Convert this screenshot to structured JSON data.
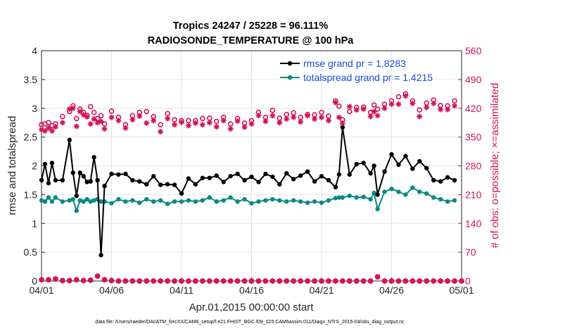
{
  "chart_data": {
    "type": "line",
    "title": "Tropics 24247 / 25228 = 96.111%",
    "subtitle": "RADIOSONDE_TEMPERATURE @ 100 hPa",
    "xlabel": "Apr.01,2015 00:00:00 start",
    "ylabel": "rmse and totalspread",
    "ylabel_right": "# of obs: o=possible; ×=assimilated",
    "xlim": [
      0,
      30
    ],
    "ylim": [
      0,
      4
    ],
    "ylim_right": [
      0,
      560
    ],
    "x_tick_values": [
      0,
      5,
      10,
      15,
      20,
      25,
      30
    ],
    "x_tick_labels": [
      "04/01",
      "04/06",
      "04/11",
      "04/16",
      "04/21",
      "04/26",
      "05/01"
    ],
    "y_ticks": [
      "0",
      "0.5",
      "1",
      "1.5",
      "2",
      "2.5",
      "3",
      "3.5",
      "4"
    ],
    "y_ticks_right": [
      "0",
      "70",
      "140",
      "210",
      "280",
      "350",
      "420",
      "490",
      "560"
    ],
    "grid": true,
    "legend_position": "top-right",
    "x": [
      0.0,
      0.25,
      0.5,
      0.75,
      1,
      1.5,
      2,
      2.25,
      2.5,
      2.75,
      3,
      3.25,
      3.5,
      3.75,
      4,
      4.25,
      4.5,
      5,
      5.5,
      6,
      6.5,
      7,
      7.5,
      8,
      8.5,
      9,
      9.5,
      10,
      10.5,
      11,
      11.5,
      12,
      12.5,
      13,
      13.5,
      14,
      14.5,
      15,
      15.5,
      16,
      16.5,
      17,
      17.5,
      18,
      18.5,
      19,
      19.5,
      20,
      20.5,
      21,
      21.25,
      21.5,
      22,
      22.5,
      23,
      23.5,
      23.75,
      24,
      24.5,
      25,
      25.5,
      26,
      26.5,
      27,
      27.5,
      28,
      28.5,
      29,
      29.5
    ],
    "series": [
      {
        "name": "rmse",
        "legend_label": "rmse grand pr = 1.8283",
        "color": "#000000",
        "values": [
          1.75,
          2.03,
          1.7,
          2.05,
          1.75,
          1.75,
          2.45,
          1.88,
          1.48,
          1.88,
          1.82,
          1.72,
          1.73,
          2.15,
          1.75,
          0.45,
          1.65,
          1.86,
          1.85,
          1.86,
          1.75,
          1.73,
          1.68,
          1.82,
          1.67,
          1.68,
          1.67,
          1.52,
          1.78,
          1.68,
          1.79,
          1.79,
          1.83,
          1.72,
          1.82,
          1.86,
          1.75,
          1.81,
          1.72,
          1.86,
          1.81,
          1.68,
          1.87,
          1.77,
          1.83,
          1.9,
          1.73,
          1.82,
          1.75,
          1.63,
          1.85,
          2.67,
          1.85,
          2.03,
          2.05,
          1.87,
          2.0,
          1.5,
          1.9,
          2.2,
          2.02,
          2.17,
          1.95,
          2.08,
          1.96,
          1.75,
          1.73,
          1.8,
          1.75
        ]
      },
      {
        "name": "totalspread",
        "legend_label": "totalspread grand pr = 1.4215",
        "color": "#0a8a82",
        "values": [
          1.4,
          1.38,
          1.45,
          1.38,
          1.45,
          1.38,
          1.4,
          1.42,
          1.22,
          1.4,
          1.38,
          1.42,
          1.38,
          1.4,
          1.42,
          1.38,
          1.38,
          1.35,
          1.42,
          1.38,
          1.4,
          1.36,
          1.42,
          1.38,
          1.4,
          1.34,
          1.38,
          1.38,
          1.4,
          1.38,
          1.4,
          1.45,
          1.38,
          1.4,
          1.45,
          1.38,
          1.42,
          1.35,
          1.38,
          1.4,
          1.42,
          1.4,
          1.38,
          1.4,
          1.38,
          1.36,
          1.38,
          1.36,
          1.4,
          1.44,
          1.45,
          1.45,
          1.48,
          1.45,
          1.46,
          1.42,
          1.53,
          1.25,
          1.55,
          1.6,
          1.55,
          1.5,
          1.62,
          1.55,
          1.52,
          1.45,
          1.42,
          1.38,
          1.4
        ]
      },
      {
        "name": "obs possible",
        "marker": "o",
        "color": "#d1145a",
        "axis": "right",
        "values": [
          380,
          382,
          385,
          378,
          382,
          400,
          412,
          426,
          395,
          418,
          410,
          403,
          424,
          410,
          395,
          402,
          382,
          413,
          398,
          380,
          402,
          410,
          412,
          400,
          380,
          407,
          392,
          390,
          390,
          390,
          395,
          396,
          388,
          398,
          382,
          395,
          384,
          390,
          410,
          398,
          415,
          396,
          405,
          409,
          398,
          405,
          404,
          410,
          401,
          438,
          425,
          392,
          412,
          422,
          423,
          410,
          428,
          418,
          430,
          438,
          448,
          455,
          438,
          416,
          433,
          440,
          427,
          426,
          438
        ]
      },
      {
        "name": "obs assimilated",
        "marker": "x",
        "color": "#d1145a",
        "axis": "right",
        "values": [
          368,
          365,
          372,
          365,
          375,
          385,
          418,
          420,
          376,
          412,
          404,
          399,
          382,
          394,
          385,
          388,
          370,
          398,
          390,
          372,
          392,
          401,
          384,
          390,
          363,
          395,
          380,
          386,
          378,
          384,
          380,
          385,
          375,
          390,
          370,
          389,
          374,
          382,
          402,
          388,
          402,
          385,
          394,
          398,
          387,
          402,
          394,
          398,
          390,
          434,
          398,
          384,
          424,
          416,
          418,
          400,
          412,
          402,
          420,
          430,
          430,
          450,
          432,
          400,
          422,
          432,
          417,
          417,
          426
        ]
      }
    ],
    "obs_near_zero": {
      "x": [
        0,
        0.5,
        1,
        1.5,
        2,
        2.5,
        3,
        3.5,
        4,
        4.5,
        5,
        5.5,
        6,
        6.5,
        7,
        7.5,
        8,
        8.5,
        9,
        9.5,
        10,
        10.5,
        11,
        11.5,
        12,
        12.5,
        13,
        13.5,
        14,
        14.5,
        15,
        15.5,
        16,
        16.5,
        17,
        17.5,
        18,
        18.5,
        19,
        19.5,
        20,
        20.5,
        21,
        21.5,
        22,
        22.5,
        23,
        23.5,
        24,
        24.5,
        25,
        25.5,
        26,
        26.5,
        27,
        27.5,
        28,
        28.5,
        29,
        29.5,
        30
      ],
      "values": [
        3,
        3,
        5,
        1,
        1,
        3,
        1,
        2,
        12,
        3,
        1,
        0,
        0,
        0,
        0,
        0,
        0,
        0,
        0,
        0,
        0,
        0,
        0,
        0,
        0,
        0,
        0,
        0,
        0,
        0,
        0,
        0,
        0,
        0,
        0,
        0,
        0,
        0,
        0,
        0,
        0,
        0,
        0,
        0,
        0,
        0,
        0,
        0,
        10,
        0,
        0,
        0,
        0,
        0,
        0,
        0,
        0,
        0,
        0,
        0,
        0
      ]
    }
  },
  "footer": {
    "data_file": "data file: /Users/raeder/DAI/ATM_forcXX/CAM6_setup/f.e21.FHIST_BGC.f09_025.CAM6assim.011/Diags_NTrS_2015-04/obs_diag_output.nc"
  }
}
